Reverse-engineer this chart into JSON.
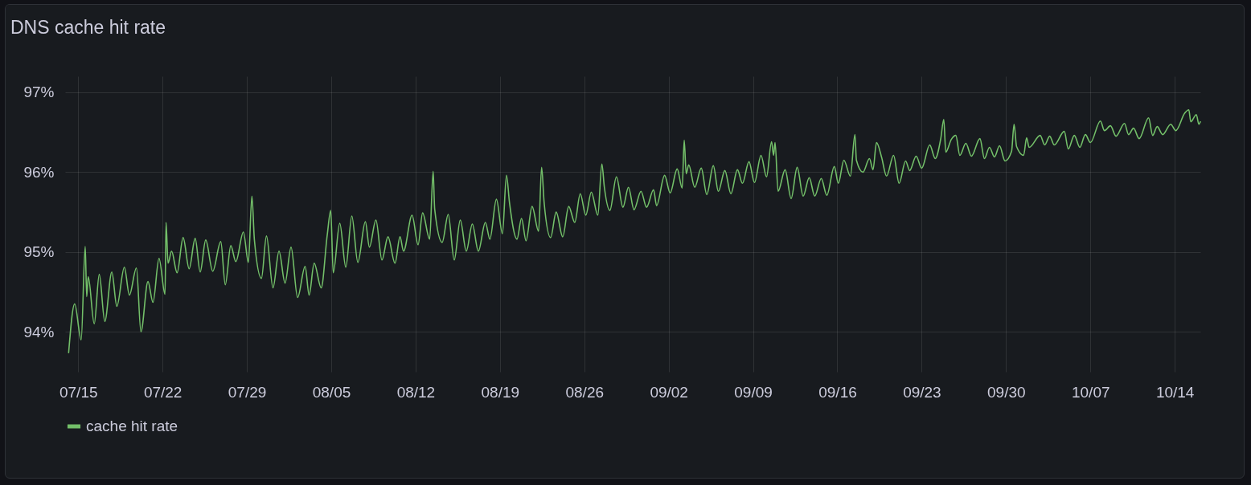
{
  "chart_data": {
    "type": "line",
    "title": "DNS cache hit rate",
    "x": [
      "--07-14T05:00",
      "--07-14T17:00",
      "--07-15T06:00",
      "--07-15T14:00",
      "--07-15T17:00",
      "--07-15T20:00",
      "--07-16T08:00",
      "--07-16T18:00",
      "--07-17T05:00",
      "--07-17T19:00",
      "--07-18T05:00",
      "--07-18T20:00",
      "--07-19T06:00",
      "--07-19T20:00",
      "--07-20T05:00",
      "--07-20T19:00",
      "--07-21T05:00",
      "--07-21T17:00",
      "--07-22T05:00",
      "--07-22T07:00",
      "--07-22T11:00",
      "--07-22T18:00",
      "--07-23T05:00",
      "--07-23T17:00",
      "--07-24T05:00",
      "--07-24T17:00",
      "--07-25T03:00",
      "--07-25T14:00",
      "--07-26T04:00",
      "--07-26T20:00",
      "--07-27T05:00",
      "--07-27T16:00",
      "--07-28T02:00",
      "--07-28T17:00",
      "--07-29T03:00",
      "--07-29T10:00",
      "--07-29T15:00",
      "--07-30T05:00",
      "--07-30T15:00",
      "--07-31T04:00",
      "--07-31T16:00",
      "--08-01T04:00",
      "--08-01T16:00",
      "--08-02T05:00",
      "--08-02T20:00",
      "--08-03T04:00",
      "--08-03T14:00",
      "--08-04T04:00",
      "--08-04T16:00",
      "--08-04T23:00",
      "--08-05T04:00",
      "--08-05T17:00",
      "--08-06T05:00",
      "--08-06T17:00",
      "--08-07T05:00",
      "--08-07T20:00",
      "--08-08T04:00",
      "--08-08T17:00",
      "--08-09T05:00",
      "--08-09T17:00",
      "--08-10T07:00",
      "--08-10T17:00",
      "--08-11T00:00",
      "--08-11T17:00",
      "--08-12T05:00",
      "--08-12T14:00",
      "--08-13T04:00",
      "--08-13T11:00",
      "--08-13T14:00",
      "--08-14T05:00",
      "--08-14T17:00",
      "--08-15T05:00",
      "--08-15T17:00",
      "--08-16T05:00",
      "--08-16T17:00",
      "--08-17T05:00",
      "--08-17T19:00",
      "--08-18T04:00",
      "--08-18T17:00",
      "--08-19T05:00",
      "--08-19T13:00",
      "--08-19T19:00",
      "--08-20T10:00",
      "--08-20T19:00",
      "--08-21T04:00",
      "--08-21T16:00",
      "--08-22T05:00",
      "--08-22T11:00",
      "--08-22T16:00",
      "--08-23T05:00",
      "--08-23T16:00",
      "--08-24T05:00",
      "--08-24T17:00",
      "--08-25T05:00",
      "--08-25T16:00",
      "--08-26T03:00",
      "--08-26T14:00",
      "--08-27T03:00",
      "--08-27T11:00",
      "--08-27T16:00",
      "--08-28T03:00",
      "--08-28T16:00",
      "--08-29T05:00",
      "--08-29T16:00",
      "--08-30T03:00",
      "--08-30T17:00",
      "--08-31T04:00",
      "--08-31T18:00",
      "--09-01T00:00",
      "--09-01T16:00",
      "--09-02T03:00",
      "--09-02T17:00",
      "--09-03T03:00",
      "--09-03T07:00",
      "--09-03T11:00",
      "--09-03T16:00",
      "--09-04T04:00",
      "--09-04T17:00",
      "--09-05T04:00",
      "--09-05T17:00",
      "--09-06T03:00",
      "--09-06T16:00",
      "--09-07T04:00",
      "--09-07T17:00",
      "--09-08T03:00",
      "--09-08T16:00",
      "--09-09T03:00",
      "--09-09T16:00",
      "--09-10T03:00",
      "--09-10T13:00",
      "--09-10T17:00",
      "--09-10T20:00",
      "--09-11T02:00",
      "--09-11T16:00",
      "--09-12T04:00",
      "--09-12T16:00",
      "--09-13T04:00",
      "--09-13T16:00",
      "--09-14T03:00",
      "--09-14T16:00",
      "--09-15T03:00",
      "--09-15T18:00",
      "--09-16T02:00",
      "--09-16T13:00",
      "--09-17T02:00",
      "--09-17T11:00",
      "--09-17T14:00",
      "--09-18T03:00",
      "--09-18T16:00",
      "--09-18T23:00",
      "--09-19T06:00",
      "--09-19T16:00",
      "--09-20T02:00",
      "--09-20T16:00",
      "--09-21T03:00",
      "--09-21T16:00",
      "--09-22T00:00",
      "--09-22T13:00",
      "--09-23T00:00",
      "--09-23T16:00",
      "--09-24T03:00",
      "--09-24T14:00",
      "--09-24T20:00",
      "--09-25T00:00",
      "--09-25T11:00",
      "--09-25T20:00",
      "--09-26T04:00",
      "--09-26T16:00",
      "--09-27T03:00",
      "--09-27T20:00",
      "--09-28T05:00",
      "--09-28T15:00",
      "--09-29T01:00",
      "--09-29T11:00",
      "--09-29T22:00",
      "--09-30T11:00",
      "--09-30T16:00",
      "--09-30T21:00",
      "--10-01T11:00",
      "--10-01T17:00",
      "--10-01T22:00",
      "--10-02T20:00",
      "--10-03T05:00",
      "--10-03T15:00",
      "--10-04T00:00",
      "--10-04T20:00",
      "--10-05T04:00",
      "--10-05T16:00",
      "--10-06T03:00",
      "--10-06T14:00",
      "--10-07T00:00",
      "--10-07T20:00",
      "--10-08T04:00",
      "--10-08T16:00",
      "--10-09T03:00",
      "--10-09T20:00",
      "--10-10T04:00",
      "--10-10T14:00",
      "--10-11T01:00",
      "--10-11T20:00",
      "--10-12T04:00",
      "--10-12T13:00",
      "--10-13T00:00",
      "--10-13T16:00",
      "--10-14T02:00",
      "--10-14T20:00",
      "--10-15T04:00",
      "--10-15T08:00",
      "--10-15T19:00",
      "--10-16T00:00",
      "--10-16T03:00"
    ],
    "series": [
      {
        "name": "cache hit rate",
        "color": "#73bf69",
        "values": [
          93.74,
          94.35,
          93.9,
          95.07,
          94.44,
          94.69,
          94.1,
          94.72,
          94.13,
          94.75,
          94.32,
          94.81,
          94.46,
          94.8,
          94.0,
          94.63,
          94.37,
          94.92,
          94.47,
          95.37,
          94.86,
          95.01,
          94.74,
          95.18,
          94.79,
          95.17,
          94.75,
          95.15,
          94.76,
          95.13,
          94.59,
          95.08,
          94.88,
          95.25,
          94.87,
          95.7,
          95.15,
          94.67,
          95.2,
          94.55,
          95.01,
          94.61,
          95.06,
          94.43,
          94.82,
          94.46,
          94.86,
          94.55,
          95.21,
          95.52,
          94.74,
          95.36,
          94.81,
          95.45,
          94.87,
          95.38,
          95.06,
          95.4,
          94.9,
          95.19,
          94.86,
          95.19,
          95.01,
          95.46,
          95.09,
          95.49,
          95.16,
          96.01,
          95.54,
          95.12,
          95.47,
          94.9,
          95.4,
          95.01,
          95.35,
          95.01,
          95.37,
          95.16,
          95.66,
          95.23,
          95.96,
          95.62,
          95.16,
          95.42,
          95.14,
          95.57,
          95.26,
          96.06,
          95.62,
          95.18,
          95.5,
          95.19,
          95.57,
          95.37,
          95.73,
          95.46,
          95.75,
          95.46,
          96.1,
          95.81,
          95.52,
          95.94,
          95.56,
          95.81,
          95.53,
          95.76,
          95.56,
          95.78,
          95.58,
          95.96,
          95.74,
          96.04,
          95.8,
          96.4,
          95.98,
          96.09,
          95.81,
          96.05,
          95.72,
          96.08,
          95.76,
          96.02,
          95.73,
          96.03,
          95.86,
          96.13,
          95.87,
          96.21,
          95.94,
          96.38,
          96.21,
          96.37,
          95.76,
          96.03,
          95.67,
          96.06,
          95.7,
          95.93,
          95.7,
          95.92,
          95.71,
          96.07,
          95.86,
          96.15,
          95.95,
          96.47,
          96.15,
          96.0,
          96.17,
          96.03,
          96.37,
          96.19,
          95.95,
          96.21,
          95.86,
          96.14,
          96.02,
          96.2,
          96.05,
          96.34,
          96.17,
          96.42,
          96.66,
          96.25,
          96.41,
          96.46,
          96.21,
          96.36,
          96.2,
          96.42,
          96.17,
          96.31,
          96.19,
          96.33,
          96.14,
          96.26,
          96.6,
          96.32,
          96.21,
          96.43,
          96.31,
          96.46,
          96.34,
          96.45,
          96.34,
          96.51,
          96.29,
          96.46,
          96.31,
          96.47,
          96.37,
          96.64,
          96.52,
          96.58,
          96.45,
          96.61,
          96.47,
          96.55,
          96.42,
          96.68,
          96.46,
          96.57,
          96.47,
          96.6,
          96.52,
          96.74,
          96.78,
          96.63,
          96.72,
          96.6,
          96.63
        ]
      }
    ],
    "xlim": [
      "--07-13T22:00",
      "--10-16T03:00"
    ],
    "xticks": [
      {
        "value": "--07-15",
        "label": "07/15"
      },
      {
        "value": "--07-22",
        "label": "07/22"
      },
      {
        "value": "--07-29",
        "label": "07/29"
      },
      {
        "value": "--08-05",
        "label": "08/05"
      },
      {
        "value": "--08-12",
        "label": "08/12"
      },
      {
        "value": "--08-19",
        "label": "08/19"
      },
      {
        "value": "--08-26",
        "label": "08/26"
      },
      {
        "value": "--09-02",
        "label": "09/02"
      },
      {
        "value": "--09-09",
        "label": "09/09"
      },
      {
        "value": "--09-16",
        "label": "09/16"
      },
      {
        "value": "--09-23",
        "label": "09/23"
      },
      {
        "value": "--09-30",
        "label": "09/30"
      },
      {
        "value": "--10-07",
        "label": "10/07"
      },
      {
        "value": "--10-14",
        "label": "10/14"
      }
    ],
    "ylim": [
      93.5,
      97.2
    ],
    "yticks": [
      {
        "value": 94,
        "label": "94%"
      },
      {
        "value": 95,
        "label": "95%"
      },
      {
        "value": 96,
        "label": "96%"
      },
      {
        "value": 97,
        "label": "97%"
      }
    ],
    "grid": true,
    "legend": "bottom",
    "line_style": "solid"
  }
}
